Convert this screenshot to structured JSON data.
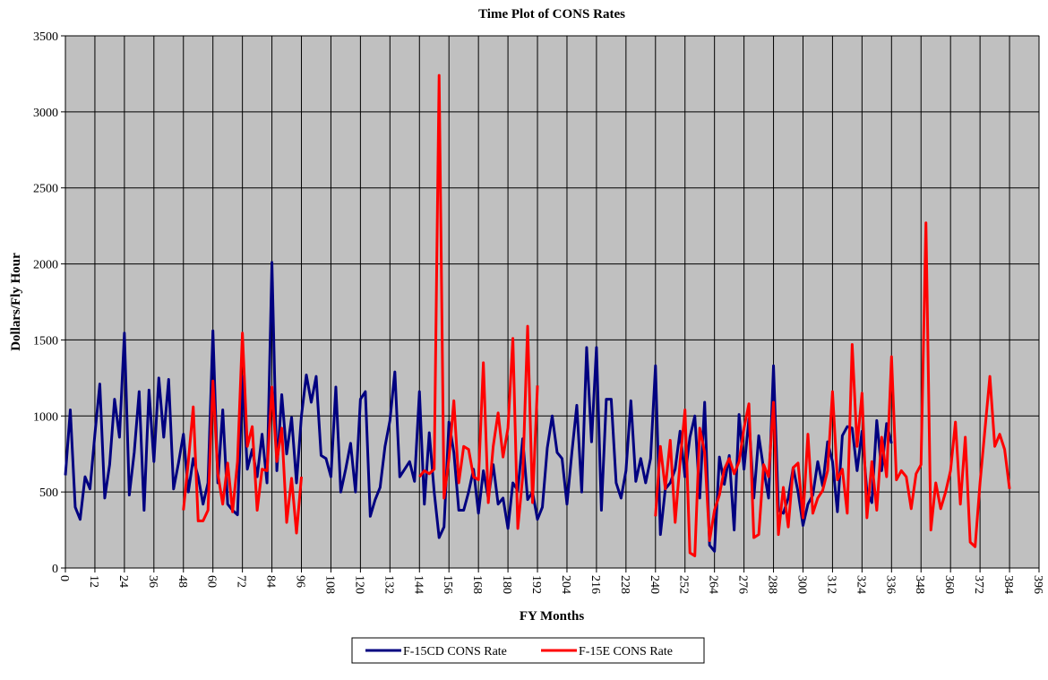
{
  "chart_data": {
    "type": "line",
    "title": "Time Plot of CONS Rates",
    "x_label": "FY Months",
    "y_label": "Dollars/Fly Hour",
    "x": [
      0,
      2,
      4,
      6,
      8,
      10,
      12,
      14,
      16,
      18,
      20,
      22,
      24,
      26,
      28,
      30,
      32,
      34,
      36,
      38,
      40,
      42,
      44,
      46,
      48,
      50,
      52,
      54,
      56,
      58,
      60,
      62,
      64,
      66,
      68,
      70,
      72,
      74,
      76,
      78,
      80,
      82,
      84,
      86,
      88,
      90,
      92,
      94,
      96,
      98,
      100,
      102,
      104,
      106,
      108,
      110,
      112,
      114,
      116,
      118,
      120,
      122,
      124,
      126,
      128,
      130,
      132,
      134,
      136,
      138,
      140,
      142,
      144,
      146,
      148,
      150,
      152,
      154,
      156,
      158,
      160,
      162,
      164,
      166,
      168,
      170,
      172,
      174,
      176,
      178,
      180,
      182,
      184,
      186,
      188,
      190,
      192,
      194,
      196,
      198,
      200,
      202,
      204,
      206,
      208,
      210,
      212,
      214,
      216,
      218,
      220,
      222,
      224,
      226,
      228,
      230,
      232,
      234,
      236,
      238,
      240,
      242,
      244,
      246,
      248,
      250,
      252,
      254,
      256,
      258,
      260,
      262,
      264,
      266,
      268,
      270,
      272,
      274,
      276,
      278,
      280,
      282,
      284,
      286,
      288,
      290,
      292,
      294,
      296,
      298,
      300,
      302,
      304,
      306,
      308,
      310,
      312,
      314,
      316,
      318,
      320,
      322,
      324,
      326,
      328,
      330,
      332,
      334,
      336,
      338,
      340,
      342,
      344,
      346,
      348,
      350,
      352,
      354,
      356,
      358,
      360,
      362,
      364,
      366,
      368,
      370,
      372,
      374,
      376,
      378,
      380,
      382,
      384
    ],
    "series": [
      {
        "name": "F-15CD CONS Rate",
        "color": "#000080",
        "values": [
          610,
          1040,
          400,
          320,
          600,
          520,
          880,
          1210,
          460,
          680,
          1110,
          860,
          1545,
          480,
          760,
          1160,
          380,
          1170,
          700,
          1250,
          860,
          1240,
          520,
          690,
          880,
          500,
          720,
          600,
          420,
          560,
          1560,
          560,
          1040,
          420,
          380,
          350,
          1260,
          650,
          780,
          600,
          880,
          560,
          2010,
          640,
          1140,
          750,
          990,
          560,
          1000,
          1270,
          1090,
          1260,
          740,
          720,
          600,
          1190,
          500,
          650,
          820,
          500,
          1110,
          1160,
          340,
          450,
          530,
          800,
          970,
          1290,
          600,
          650,
          700,
          570,
          1160,
          420,
          890,
          500,
          200,
          270,
          960,
          760,
          380,
          380,
          500,
          650,
          360,
          640,
          460,
          680,
          420,
          460,
          260,
          560,
          510,
          850,
          450,
          500,
          320,
          400,
          790,
          1000,
          760,
          720,
          420,
          760,
          1070,
          500,
          1450,
          830,
          1450,
          380,
          1110,
          1110,
          560,
          460,
          640,
          1100,
          570,
          720,
          560,
          720,
          1330,
          220,
          520,
          560,
          650,
          900,
          600,
          860,
          1000,
          460,
          1090,
          150,
          110,
          730,
          550,
          740,
          250,
          1010,
          650,
          980,
          460,
          870,
          650,
          460,
          1330,
          380,
          360,
          460,
          660,
          500,
          280,
          420,
          480,
          700,
          540,
          830,
          700,
          370,
          870,
          930,
          920,
          640,
          900,
          500,
          430,
          970,
          640,
          950,
          820,
          null,
          null,
          null,
          null,
          null,
          null,
          null,
          null,
          null,
          null,
          null,
          null,
          null,
          null,
          null,
          null,
          null,
          null,
          null,
          null,
          null,
          null,
          null,
          null
        ]
      },
      {
        "name": "F-15E CONS Rate",
        "color": "#ff0000",
        "values": [
          null,
          null,
          null,
          null,
          null,
          null,
          null,
          null,
          null,
          null,
          null,
          null,
          null,
          null,
          null,
          null,
          null,
          null,
          null,
          null,
          null,
          null,
          null,
          null,
          380,
          700,
          1060,
          310,
          310,
          380,
          1230,
          620,
          420,
          690,
          370,
          700,
          1545,
          800,
          930,
          380,
          650,
          640,
          1190,
          700,
          920,
          300,
          590,
          230,
          600,
          null,
          null,
          null,
          null,
          null,
          null,
          null,
          null,
          null,
          null,
          null,
          null,
          null,
          null,
          null,
          null,
          null,
          null,
          null,
          null,
          null,
          null,
          null,
          600,
          640,
          620,
          650,
          3240,
          460,
          720,
          1100,
          560,
          800,
          780,
          600,
          580,
          1350,
          430,
          800,
          1020,
          730,
          920,
          1510,
          260,
          600,
          1590,
          430,
          1200,
          null,
          null,
          null,
          null,
          null,
          null,
          null,
          null,
          null,
          null,
          null,
          null,
          null,
          null,
          null,
          null,
          null,
          null,
          null,
          null,
          null,
          null,
          null,
          340,
          800,
          520,
          840,
          300,
          700,
          1040,
          100,
          80,
          920,
          760,
          180,
          380,
          480,
          650,
          720,
          620,
          700,
          920,
          1080,
          200,
          220,
          680,
          600,
          1090,
          220,
          530,
          270,
          660,
          690,
          330,
          880,
          360,
          460,
          510,
          640,
          1160,
          580,
          650,
          360,
          1470,
          800,
          1150,
          330,
          700,
          380,
          860,
          600,
          1390,
          580,
          640,
          600,
          390,
          620,
          680,
          2270,
          250,
          560,
          390,
          500,
          640,
          960,
          420,
          860,
          170,
          140,
          560,
          910,
          1260,
          800,
          880,
          780,
          520
        ]
      }
    ],
    "xlim": [
      0,
      396
    ],
    "xticks": [
      0,
      12,
      24,
      36,
      48,
      60,
      72,
      84,
      96,
      108,
      120,
      132,
      144,
      156,
      168,
      180,
      192,
      204,
      216,
      228,
      240,
      252,
      264,
      276,
      288,
      300,
      312,
      324,
      336,
      348,
      360,
      372,
      384,
      396
    ],
    "ylim": [
      0,
      3500
    ],
    "yticks": [
      0,
      500,
      1000,
      1500,
      2000,
      2500,
      3000,
      3500
    ],
    "grid": true
  }
}
